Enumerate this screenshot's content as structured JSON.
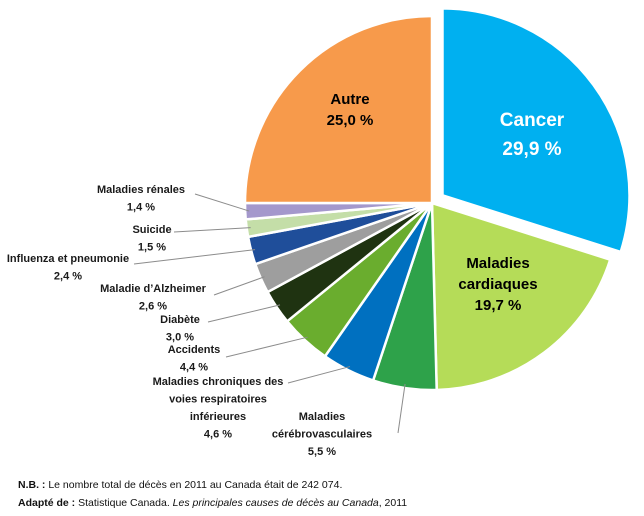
{
  "chart_data": {
    "type": "pie",
    "slices": [
      {
        "label": "Cancer",
        "value_text": "29,9 %",
        "value": 29.9,
        "color": "#00b0f0",
        "exploded": true
      },
      {
        "label": "Maladies cardiaques",
        "value_text": "19,7 %",
        "value": 19.7,
        "color": "#b5dc58"
      },
      {
        "label": "Maladies cérébrovasculaires",
        "value_text": "5,5 %",
        "value": 5.5,
        "color": "#2ea24a"
      },
      {
        "label": "Maladies chroniques des voies respiratoires inférieures",
        "value_text": "4,6 %",
        "value": 4.6,
        "color": "#0070c0"
      },
      {
        "label": "Accidents",
        "value_text": "4,4 %",
        "value": 4.4,
        "color": "#6aad2e"
      },
      {
        "label": "Diabète",
        "value_text": "3,0 %",
        "value": 3.0,
        "color": "#1f3311"
      },
      {
        "label": "Maladie d’Alzheimer",
        "value_text": "2,6 %",
        "value": 2.6,
        "color": "#9e9e9e"
      },
      {
        "label": "Influenza et pneumonie",
        "value_text": "2,4 %",
        "value": 2.4,
        "color": "#1f4e9a"
      },
      {
        "label": "Suicide",
        "value_text": "1,5 %",
        "value": 1.5,
        "color": "#c4dea8"
      },
      {
        "label": "Maladies rénales",
        "value_text": "1,4 %",
        "value": 1.4,
        "color": "#a498cc"
      },
      {
        "label": "Autre",
        "value_text": "25,0 %",
        "value": 25.0,
        "color": "#f79a4b"
      }
    ]
  },
  "notes": {
    "nb_label": "N.B. :",
    "nb_text": " Le nombre total de décès en 2011 au Canada était de 242 074.",
    "source_label": "Adapté de :",
    "source_prefix": " Statistique Canada. ",
    "source_title": "Les principales causes de décès au Canada",
    "source_suffix": ", 2011"
  }
}
